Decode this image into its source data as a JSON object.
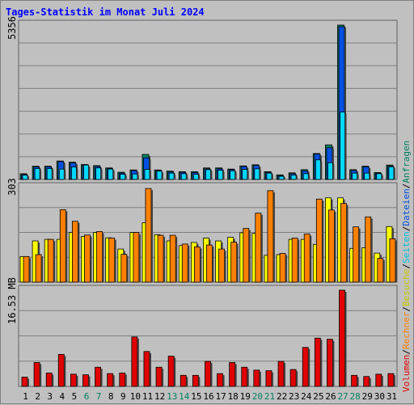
{
  "page": {
    "title": "Tages-Statistik im Monat Juli 2024"
  },
  "colors": {
    "background": "#c0c0c0",
    "gridline": "#808080",
    "title": "#0000ff",
    "anfragen": "#008060",
    "dateien": "#0050e0",
    "seiten": "#00d8ff",
    "besuche": "#ffff00",
    "rechner": "#ff8000",
    "volumen": "#e00000",
    "weekend_label": "#008060"
  },
  "chart_data": [
    {
      "type": "bar",
      "name": "hits-files-pages",
      "max_label": "5356",
      "ylim": [
        0,
        5356
      ],
      "x": [
        1,
        2,
        3,
        4,
        5,
        6,
        7,
        8,
        9,
        10,
        11,
        12,
        13,
        14,
        15,
        16,
        17,
        18,
        19,
        20,
        21,
        22,
        23,
        24,
        25,
        26,
        27,
        28,
        29,
        30,
        31
      ],
      "weekend_days": [
        6,
        7,
        13,
        14,
        20,
        21,
        27,
        28
      ],
      "series": [
        {
          "name": "Anfragen",
          "values": [
            200,
            460,
            460,
            640,
            600,
            520,
            480,
            400,
            250,
            330,
            870,
            330,
            290,
            270,
            270,
            400,
            400,
            360,
            470,
            510,
            270,
            160,
            230,
            340,
            900,
            1200,
            5356,
            340,
            460,
            240,
            500
          ]
        },
        {
          "name": "Dateien",
          "values": [
            170,
            430,
            440,
            620,
            570,
            490,
            450,
            380,
            220,
            310,
            750,
            310,
            260,
            250,
            240,
            370,
            370,
            340,
            450,
            490,
            250,
            130,
            200,
            300,
            880,
            1100,
            5300,
            310,
            440,
            210,
            460
          ]
        },
        {
          "name": "Seiten",
          "values": [
            150,
            380,
            380,
            360,
            430,
            500,
            400,
            360,
            180,
            190,
            350,
            290,
            220,
            200,
            180,
            340,
            320,
            300,
            350,
            370,
            220,
            110,
            150,
            200,
            680,
            580,
            2340,
            220,
            220,
            200,
            440
          ]
        }
      ],
      "legend": [
        "Anfragen",
        "Dateien",
        "Seiten"
      ]
    },
    {
      "type": "bar",
      "name": "visits-sites",
      "max_label": "303",
      "ylim": [
        0,
        303
      ],
      "x": [
        1,
        2,
        3,
        4,
        5,
        6,
        7,
        8,
        9,
        10,
        11,
        12,
        13,
        14,
        15,
        16,
        17,
        18,
        19,
        20,
        21,
        22,
        23,
        24,
        25,
        26,
        27,
        28,
        29,
        30,
        31
      ],
      "series": [
        {
          "name": "Besuche",
          "values": [
            82,
            132,
            137,
            137,
            159,
            146,
            159,
            142,
            106,
            159,
            190,
            152,
            132,
            117,
            127,
            141,
            132,
            144,
            158,
            156,
            86,
            88,
            137,
            137,
            121,
            270,
            270,
            108,
            110,
            93,
            178
          ]
        },
        {
          "name": "Rechner",
          "values": [
            82,
            88,
            137,
            232,
            195,
            151,
            162,
            141,
            89,
            159,
            300,
            150,
            150,
            122,
            113,
            119,
            106,
            128,
            172,
            221,
            293,
            92,
            141,
            154,
            266,
            231,
            252,
            177,
            209,
            76,
            139
          ]
        }
      ],
      "legend": [
        "Besuche",
        "Rechner"
      ]
    },
    {
      "type": "bar",
      "name": "volume",
      "max_label": "16.53 MB",
      "ylim": [
        0,
        16.53
      ],
      "x": [
        1,
        2,
        3,
        4,
        5,
        6,
        7,
        8,
        9,
        10,
        11,
        12,
        13,
        14,
        15,
        16,
        17,
        18,
        19,
        20,
        21,
        22,
        23,
        24,
        25,
        26,
        27,
        28,
        29,
        30,
        31
      ],
      "series": [
        {
          "name": "Volumen",
          "values": [
            1.6,
            4.1,
            2.3,
            5.5,
            2.1,
            2.0,
            3.3,
            2.2,
            2.3,
            8.5,
            6.0,
            3.3,
            5.2,
            1.9,
            1.9,
            4.3,
            2.2,
            4.1,
            3.3,
            2.8,
            2.7,
            4.3,
            2.9,
            6.7,
            8.3,
            8.1,
            16.53,
            1.9,
            1.7,
            2.1,
            2.2
          ]
        }
      ],
      "legend": [
        "Volumen"
      ]
    }
  ],
  "right_legend": [
    {
      "text": "Volumen",
      "color": "#e00000"
    },
    {
      "text": "/",
      "color": "#000000"
    },
    {
      "text": "Rechner",
      "color": "#ff8000"
    },
    {
      "text": "/",
      "color": "#000000"
    },
    {
      "text": "Besuche",
      "color": "#c8c800"
    },
    {
      "text": "/",
      "color": "#000000"
    },
    {
      "text": "Seiten",
      "color": "#00c0e0"
    },
    {
      "text": "/",
      "color": "#000000"
    },
    {
      "text": "Dateien",
      "color": "#0050e0"
    },
    {
      "text": "/",
      "color": "#000000"
    },
    {
      "text": "Anfragen",
      "color": "#008060"
    }
  ]
}
